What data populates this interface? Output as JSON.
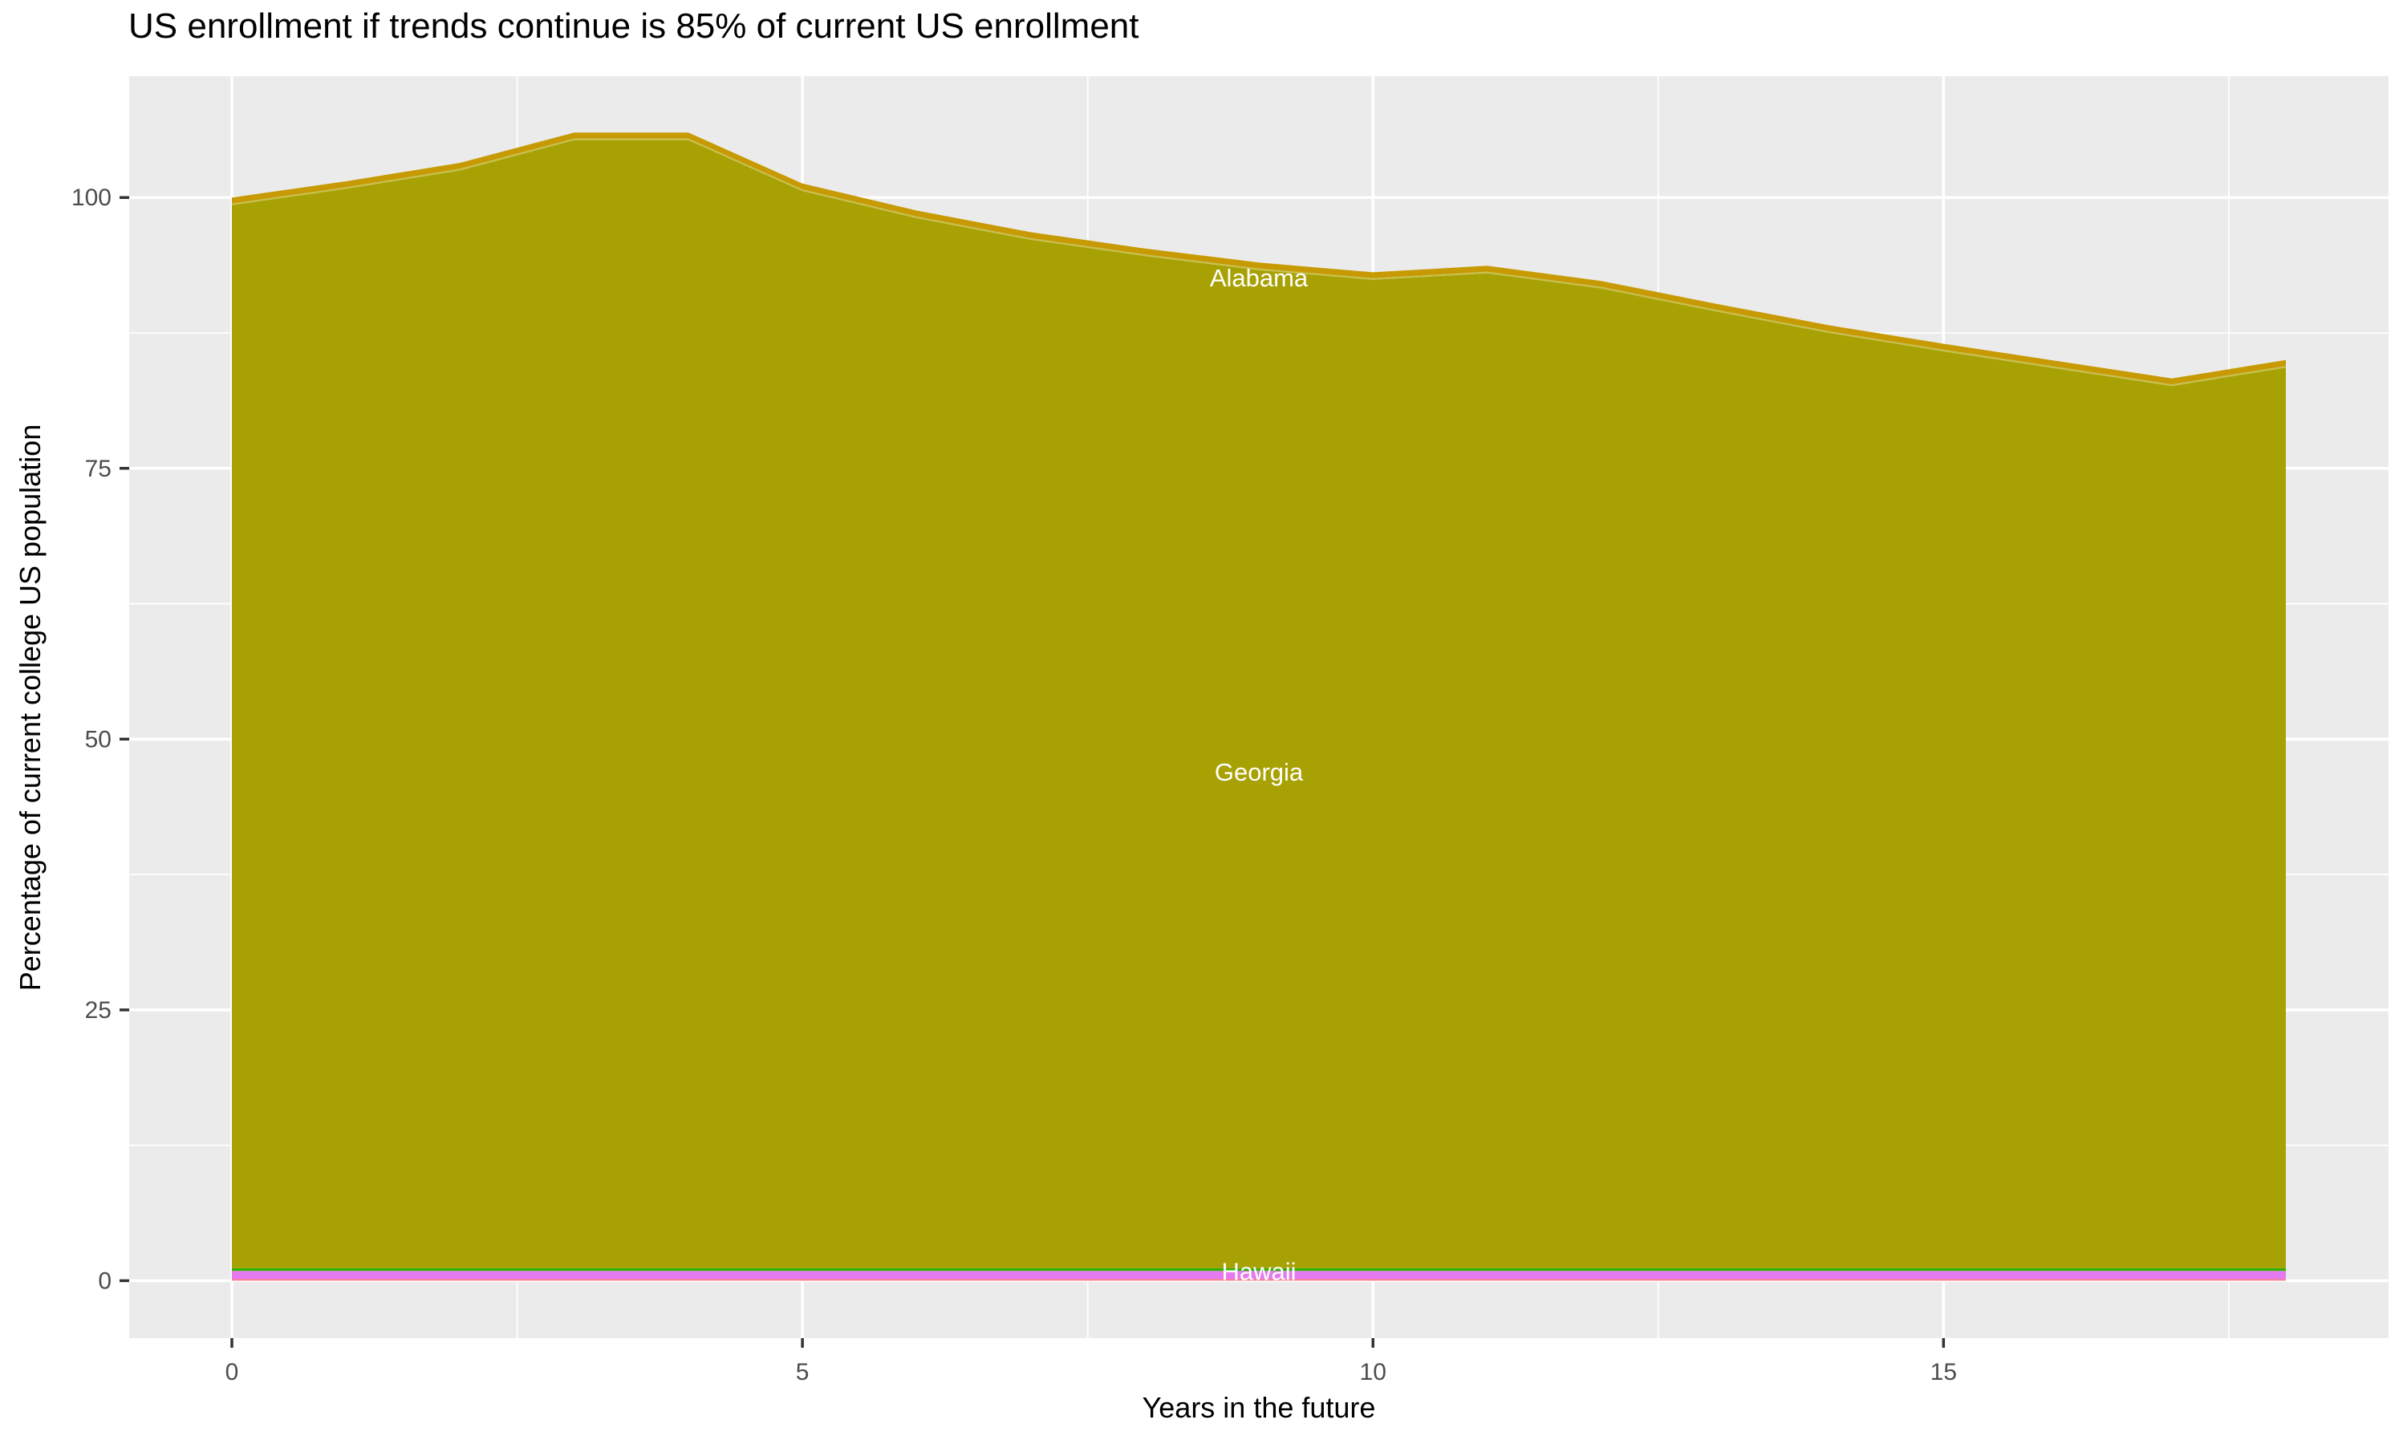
{
  "title": "US enrollment if trends continue is 85% of current US enrollment",
  "colors": {
    "panel_bg": "#ebebeb",
    "grid": "#ffffff",
    "tick_mark": "#333333",
    "tick_label": "#4d4d4d",
    "title_text": "#000000",
    "area_label_text": "#ffffff"
  },
  "chart_data": {
    "type": "area",
    "stacked": true,
    "title": "US enrollment if trends continue is 85% of current US enrollment",
    "xlabel": "Years in the future",
    "ylabel": "Percentage of current college US population",
    "grid": "on",
    "legend": "none",
    "x": [
      0,
      1,
      2,
      3,
      4,
      5,
      6,
      7,
      8,
      9,
      10,
      11,
      12,
      13,
      14,
      15,
      16,
      17,
      18
    ],
    "xlim": [
      -0.9,
      18.9
    ],
    "ylim": [
      -5.3,
      111.2
    ],
    "x_tick_values": [
      0,
      5,
      10,
      15
    ],
    "x_tick_labels": [
      "0",
      "5",
      "10",
      "15"
    ],
    "x_minor_tick_values": [
      2.5,
      7.5,
      12.5,
      17.5
    ],
    "y_tick_values": [
      0,
      25,
      50,
      75,
      100
    ],
    "y_tick_labels": [
      "0",
      "25",
      "50",
      "75",
      "100"
    ],
    "y_minor_tick_values": [
      12.5,
      37.5,
      62.5,
      87.5
    ],
    "stack_totals": [
      100,
      101.5,
      103.2,
      106,
      106,
      101.3,
      98.8,
      96.8,
      95.3,
      94,
      93.1,
      93.7,
      92.3,
      90.2,
      88.2,
      86.5,
      84.9,
      83.3,
      85
    ],
    "series": [
      {
        "name": "unlabeled-bottom-band",
        "color": "#fb7a85",
        "values": [
          0.15,
          0.15,
          0.15,
          0.15,
          0.15,
          0.15,
          0.15,
          0.15,
          0.15,
          0.15,
          0.15,
          0.15,
          0.15,
          0.15,
          0.15,
          0.15,
          0.15,
          0.15,
          0.15
        ]
      },
      {
        "name": "Hawaii",
        "color": "#e57af0",
        "values": [
          0.75,
          0.75,
          0.75,
          0.75,
          0.75,
          0.75,
          0.75,
          0.75,
          0.75,
          0.75,
          0.75,
          0.75,
          0.75,
          0.75,
          0.75,
          0.75,
          0.75,
          0.75,
          0.75
        ]
      },
      {
        "name": "unlabeled-green-band",
        "color": "#2db300",
        "values": [
          0.25,
          0.25,
          0.25,
          0.25,
          0.25,
          0.25,
          0.25,
          0.25,
          0.25,
          0.25,
          0.25,
          0.25,
          0.25,
          0.25,
          0.25,
          0.25,
          0.25,
          0.25,
          0.25
        ]
      },
      {
        "name": "Georgia",
        "color": "#a8a104",
        "values": [
          98.15,
          99.65,
          101.35,
          104.15,
          104.15,
          99.45,
          96.95,
          94.95,
          93.45,
          92.15,
          91.25,
          91.85,
          90.45,
          88.35,
          86.35,
          84.65,
          83.05,
          81.45,
          83.15
        ]
      },
      {
        "name": "unlabeled-pale-band",
        "color": "#c6c04c",
        "values": [
          0.15,
          0.15,
          0.15,
          0.15,
          0.15,
          0.15,
          0.15,
          0.15,
          0.15,
          0.15,
          0.15,
          0.15,
          0.15,
          0.15,
          0.15,
          0.15,
          0.15,
          0.15,
          0.15
        ]
      },
      {
        "name": "Alabama",
        "color": "#c79a03",
        "values": [
          0.55,
          0.55,
          0.55,
          0.55,
          0.55,
          0.55,
          0.55,
          0.55,
          0.55,
          0.55,
          0.55,
          0.55,
          0.55,
          0.55,
          0.55,
          0.55,
          0.55,
          0.55,
          0.55
        ]
      }
    ],
    "area_labels": [
      {
        "text": "Alabama",
        "x": 9,
        "y": 92.6
      },
      {
        "text": "Georgia",
        "x": 9,
        "y": 47.0
      },
      {
        "text": "Hawaii",
        "x": 9,
        "y": 0.9
      }
    ]
  }
}
